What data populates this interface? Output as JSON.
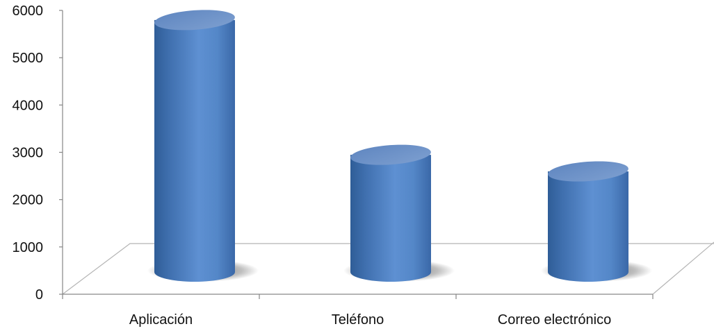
{
  "chart_data": {
    "type": "bar",
    "style": "3d-cylinder",
    "categories": [
      "Aplicación",
      "Teléfono",
      "Correo electrónico"
    ],
    "values": [
      5650,
      2800,
      2450
    ],
    "ylim": [
      0,
      6000
    ],
    "yticks": [
      "0",
      "1000",
      "2000",
      "3000",
      "4000",
      "5000",
      "6000"
    ],
    "title": "",
    "xlabel": "",
    "ylabel": "",
    "legend": "none",
    "grid": false,
    "bar_color": "#4F81BD"
  }
}
